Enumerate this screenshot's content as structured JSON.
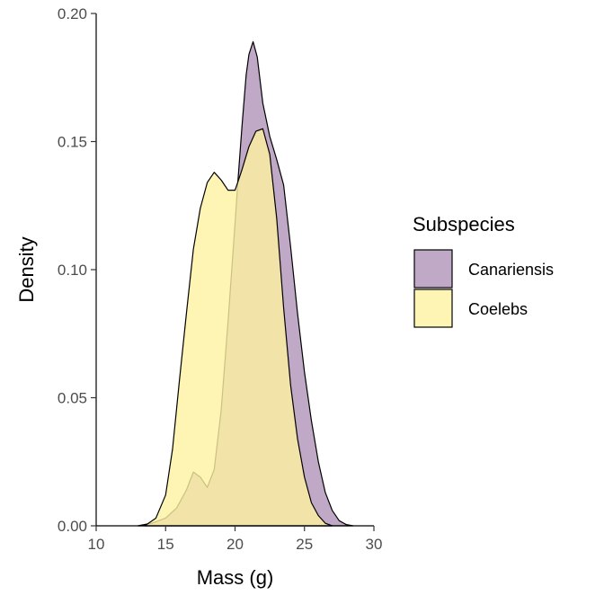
{
  "chart_data": {
    "type": "area",
    "subtype": "density",
    "xlabel": "Mass (g)",
    "ylabel": "Density",
    "xlim": [
      10,
      30
    ],
    "ylim": [
      0,
      0.2
    ],
    "x_ticks": [
      10,
      15,
      20,
      25,
      30
    ],
    "x_tick_labels": [
      "10",
      "15",
      "20",
      "25",
      "30"
    ],
    "y_ticks": [
      0,
      0.05,
      0.1,
      0.15,
      0.2
    ],
    "y_tick_labels": [
      "0.00",
      "0.05",
      "0.10",
      "0.15",
      "0.20"
    ],
    "grid": false,
    "legend": {
      "title": "Subspecies",
      "position": "right"
    },
    "series": [
      {
        "name": "Canariensis",
        "color": "#B094B8",
        "points": [
          [
            13.0,
            0.0
          ],
          [
            14.0,
            0.001
          ],
          [
            15.0,
            0.003
          ],
          [
            15.8,
            0.007
          ],
          [
            16.5,
            0.014
          ],
          [
            17.0,
            0.021
          ],
          [
            17.5,
            0.019
          ],
          [
            18.0,
            0.015
          ],
          [
            18.5,
            0.022
          ],
          [
            19.0,
            0.045
          ],
          [
            19.5,
            0.08
          ],
          [
            20.0,
            0.118
          ],
          [
            20.2,
            0.134
          ],
          [
            20.5,
            0.156
          ],
          [
            20.8,
            0.176
          ],
          [
            21.0,
            0.184
          ],
          [
            21.3,
            0.189
          ],
          [
            21.6,
            0.183
          ],
          [
            22.0,
            0.165
          ],
          [
            22.5,
            0.152
          ],
          [
            23.0,
            0.143
          ],
          [
            23.5,
            0.133
          ],
          [
            24.0,
            0.109
          ],
          [
            24.5,
            0.083
          ],
          [
            25.0,
            0.06
          ],
          [
            25.5,
            0.041
          ],
          [
            26.0,
            0.025
          ],
          [
            26.5,
            0.013
          ],
          [
            27.0,
            0.006
          ],
          [
            27.5,
            0.002
          ],
          [
            28.0,
            0.0005
          ],
          [
            28.5,
            0.0
          ]
        ]
      },
      {
        "name": "Coelebs",
        "color": "#FEF1A0",
        "points": [
          [
            13.5,
            0.0
          ],
          [
            14.3,
            0.003
          ],
          [
            15.0,
            0.012
          ],
          [
            15.5,
            0.03
          ],
          [
            16.0,
            0.057
          ],
          [
            16.5,
            0.083
          ],
          [
            17.0,
            0.108
          ],
          [
            17.5,
            0.124
          ],
          [
            18.0,
            0.134
          ],
          [
            18.5,
            0.138
          ],
          [
            19.0,
            0.135
          ],
          [
            19.5,
            0.131
          ],
          [
            20.0,
            0.131
          ],
          [
            20.5,
            0.139
          ],
          [
            21.0,
            0.148
          ],
          [
            21.5,
            0.154
          ],
          [
            22.0,
            0.155
          ],
          [
            22.5,
            0.145
          ],
          [
            23.0,
            0.12
          ],
          [
            23.5,
            0.085
          ],
          [
            24.0,
            0.055
          ],
          [
            24.5,
            0.034
          ],
          [
            25.0,
            0.019
          ],
          [
            25.5,
            0.009
          ],
          [
            26.0,
            0.004
          ],
          [
            26.5,
            0.001
          ],
          [
            27.0,
            0.0
          ]
        ]
      }
    ]
  }
}
